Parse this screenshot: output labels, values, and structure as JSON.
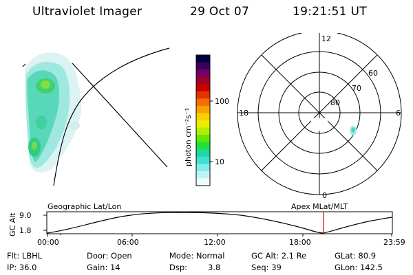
{
  "header": {
    "title": "Ultraviolet Imager",
    "date": "29 Oct 07",
    "time": "19:21:51 UT"
  },
  "colorbar": {
    "unit_label": "photon cm⁻²s⁻¹",
    "ticks": [
      "100",
      "10"
    ],
    "colors": [
      "#000040",
      "#3c0058",
      "#70006a",
      "#a0002c",
      "#c80000",
      "#e83000",
      "#f07000",
      "#f8a000",
      "#f8d000",
      "#e8f000",
      "#b0f000",
      "#60e800",
      "#20e040",
      "#20d8a0",
      "#40e0d0",
      "#80ecec",
      "#c0f4f4",
      "#eefcfc"
    ]
  },
  "polar": {
    "mlt_labels": {
      "top": "12",
      "left": "18",
      "right": "6",
      "bottom": "0"
    },
    "lat_labels": [
      "60",
      "70",
      "80"
    ]
  },
  "timeline": {
    "axis_label": "GC Alt",
    "y_ticks": [
      "9.0",
      "1.8"
    ],
    "left_caption": "Geographic Lat/Lon",
    "right_caption": "Apex MLat/MLT",
    "x_ticks": [
      "00:00",
      "06:00",
      "12:00",
      "18:00",
      "23:59"
    ]
  },
  "info": {
    "flt": "Flt: LBHL",
    "ip": "IP: 36.0",
    "door": "Door: Open",
    "gain": "Gain: 14",
    "mode": "Mode: Normal",
    "dsp_label": "Dsp:",
    "dsp_value": "3.8",
    "gc_alt": "GC Alt: 2.1 Re",
    "seq": "Seq: 39",
    "glat": "GLat: 80.9",
    "glon": "GLon: 142.5"
  }
}
